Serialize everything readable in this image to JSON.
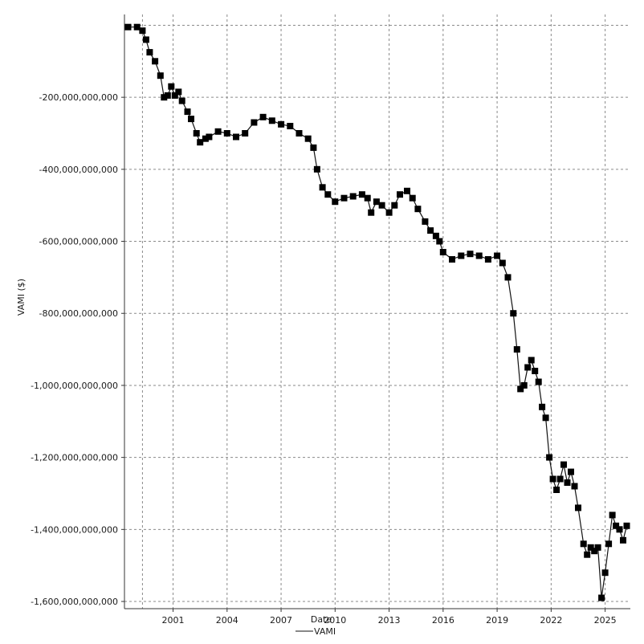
{
  "chart_data": {
    "type": "line",
    "title": "",
    "xlabel": "Date",
    "ylabel": "VAMI ($)",
    "x_ticks": [
      "2001",
      "2004",
      "2007",
      "2010",
      "2013",
      "2016",
      "2019",
      "2022",
      "2025"
    ],
    "y_ticks": [
      "-200,000,000,000",
      "-400,000,000,000",
      "-600,000,000,000",
      "-800,000,000,000",
      "-1,000,000,000,000",
      "-1,200,000,000,000",
      "-1,400,000,000,000",
      "-1,600,000,000,000"
    ],
    "xlim": [
      1998.3,
      2026.4
    ],
    "ylim": [
      -1620000000000,
      30000000000
    ],
    "grid": true,
    "legend": {
      "placement": "bottom-center"
    },
    "marker": "square",
    "colors": {
      "line": "#111111",
      "marker": "#000000",
      "grid": "#8a8a8a"
    },
    "series": [
      {
        "name": "VAMI",
        "x": [
          1998.5,
          1999.0,
          1999.3,
          1999.5,
          1999.7,
          2000.0,
          2000.3,
          2000.5,
          2000.7,
          2000.9,
          2001.1,
          2001.3,
          2001.5,
          2001.8,
          2002.0,
          2002.3,
          2002.5,
          2002.8,
          2003.0,
          2003.5,
          2004.0,
          2004.5,
          2005.0,
          2005.5,
          2006.0,
          2006.5,
          2007.0,
          2007.5,
          2008.0,
          2008.5,
          2008.8,
          2009.0,
          2009.3,
          2009.6,
          2010.0,
          2010.5,
          2011.0,
          2011.5,
          2011.8,
          2012.0,
          2012.3,
          2012.6,
          2013.0,
          2013.3,
          2013.6,
          2014.0,
          2014.3,
          2014.6,
          2015.0,
          2015.3,
          2015.6,
          2015.8,
          2016.0,
          2016.5,
          2017.0,
          2017.5,
          2018.0,
          2018.5,
          2019.0,
          2019.3,
          2019.6,
          2019.9,
          2020.1,
          2020.3,
          2020.5,
          2020.7,
          2020.9,
          2021.1,
          2021.3,
          2021.5,
          2021.7,
          2021.9,
          2022.1,
          2022.3,
          2022.5,
          2022.7,
          2022.9,
          2023.1,
          2023.3,
          2023.5,
          2023.8,
          2024.0,
          2024.2,
          2024.4,
          2024.6,
          2024.8,
          2025.0,
          2025.2,
          2025.4,
          2025.6,
          2025.8,
          2026.0,
          2026.2
        ],
        "y": [
          -5000000000,
          -5000000000,
          -15000000000,
          -40000000000,
          -75000000000,
          -100000000000,
          -140000000000,
          -200000000000,
          -195000000000,
          -170000000000,
          -195000000000,
          -185000000000,
          -210000000000,
          -240000000000,
          -260000000000,
          -300000000000,
          -325000000000,
          -315000000000,
          -310000000000,
          -295000000000,
          -300000000000,
          -310000000000,
          -300000000000,
          -270000000000,
          -255000000000,
          -265000000000,
          -275000000000,
          -280000000000,
          -300000000000,
          -315000000000,
          -340000000000,
          -400000000000,
          -450000000000,
          -470000000000,
          -490000000000,
          -480000000000,
          -475000000000,
          -470000000000,
          -480000000000,
          -520000000000,
          -490000000000,
          -500000000000,
          -520000000000,
          -500000000000,
          -470000000000,
          -460000000000,
          -480000000000,
          -510000000000,
          -545000000000,
          -570000000000,
          -585000000000,
          -600000000000,
          -630000000000,
          -650000000000,
          -640000000000,
          -635000000000,
          -640000000000,
          -650000000000,
          -640000000000,
          -660000000000,
          -700000000000,
          -800000000000,
          -900000000000,
          -1010000000000,
          -1000000000000,
          -950000000000,
          -930000000000,
          -960000000000,
          -990000000000,
          -1060000000000,
          -1090000000000,
          -1200000000000,
          -1260000000000,
          -1290000000000,
          -1260000000000,
          -1220000000000,
          -1270000000000,
          -1240000000000,
          -1280000000000,
          -1340000000000,
          -1440000000000,
          -1470000000000,
          -1450000000000,
          -1460000000000,
          -1450000000000,
          -1590000000000,
          -1520000000000,
          -1440000000000,
          -1360000000000,
          -1390000000000,
          -1400000000000,
          -1430000000000,
          -1390000000000
        ]
      }
    ]
  }
}
